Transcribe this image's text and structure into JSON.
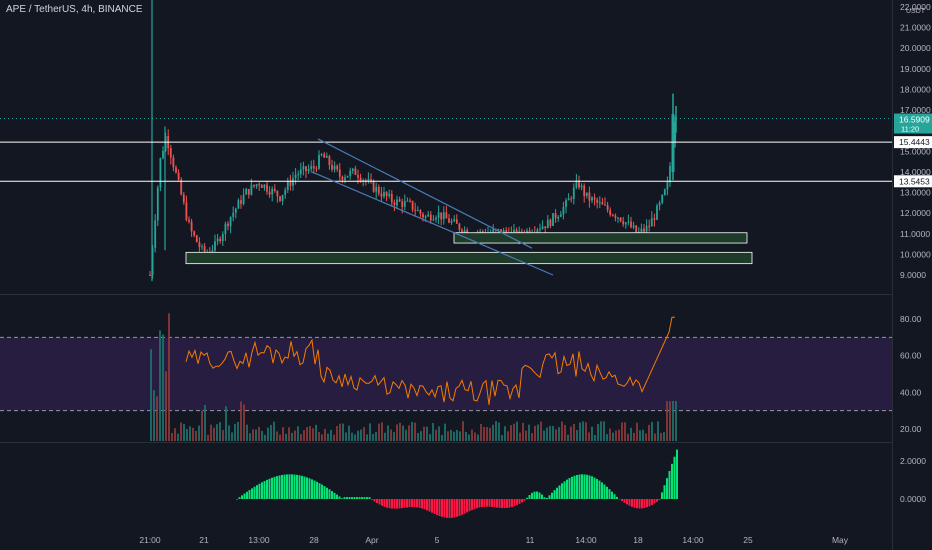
{
  "header": {
    "title": "APE / TetherUS, 4h, BINANCE"
  },
  "price_axis": {
    "unit_label": "USDT",
    "ticks": [
      "22.0000",
      "21.0000",
      "20.0000",
      "19.0000",
      "18.0000",
      "17.0000",
      "16.0000",
      "15.0000",
      "14.0000",
      "13.0000",
      "12.0000",
      "11.0000",
      "10.0000",
      "9.0000"
    ],
    "current_price": "16.5909",
    "countdown": "11:20",
    "level_high": "15.4443",
    "level_low": "13.5453"
  },
  "rsi_axis": {
    "ticks": [
      "80.00",
      "60.00",
      "40.00",
      "20.00"
    ],
    "upper": 70,
    "lower": 30
  },
  "macd_axis": {
    "ticks": [
      "2.0000",
      "0.0000"
    ]
  },
  "time_axis": {
    "labels": [
      "21:00",
      "21",
      "13:00",
      "28",
      "Apr",
      "5",
      "11",
      "14:00",
      "18",
      "14:00",
      "25",
      "May"
    ]
  },
  "colors": {
    "background": "#131722",
    "up": "#26a69a",
    "down": "#ef5350",
    "rsi_line": "#f57c00",
    "rsi_band": "#2a1f45",
    "hist_up": "#00e676",
    "hist_down": "#ff1744",
    "channel": "#4a7bb7",
    "zone_fill": "#1e3b2a",
    "zone_stroke": "#ffffff",
    "axis_text": "#b2b5be",
    "price_badge": "#26a69a"
  },
  "chart_data": {
    "type": "candlestick",
    "title": "APE / TetherUS, 4h, BINANCE",
    "symbol": "APE/USDT",
    "timeframe": "4h",
    "exchange": "BINANCE",
    "price_range": [
      8.5,
      22.5
    ],
    "close_path": [
      {
        "x": "21:00",
        "close": 9.0
      },
      {
        "x": "21",
        "close": 10.0
      },
      {
        "x": "13:00",
        "close": 13.5
      },
      {
        "x": "28",
        "close": 14.2
      },
      {
        "x": "Apr",
        "close": 13.3
      },
      {
        "x": "5",
        "close": 12.0
      },
      {
        "x": "11",
        "close": 11.2
      },
      {
        "x": "14:00",
        "close": 12.8
      },
      {
        "x": "18",
        "close": 11.0
      },
      {
        "x": "14:00",
        "close": 16.59
      }
    ],
    "horizontal_levels": [
      15.4443,
      13.5453
    ],
    "support_zones": [
      {
        "low": 10.55,
        "high": 11.05
      },
      {
        "low": 9.55,
        "high": 10.1
      }
    ],
    "channel_lines": [
      {
        "from": {
          "x": "28",
          "price": 15.6
        },
        "to": {
          "x": "11",
          "price": 10.3
        }
      },
      {
        "from": {
          "x": "28",
          "price": 14.0
        },
        "to": {
          "x": "14:00",
          "price": 9.0
        }
      }
    ],
    "rsi": {
      "range": [
        15,
        90
      ],
      "upper_band": 70,
      "lower_band": 30,
      "last": 81
    },
    "macd_histogram": {
      "range": [
        -1.4,
        2.6
      ],
      "last": 2.4
    }
  }
}
